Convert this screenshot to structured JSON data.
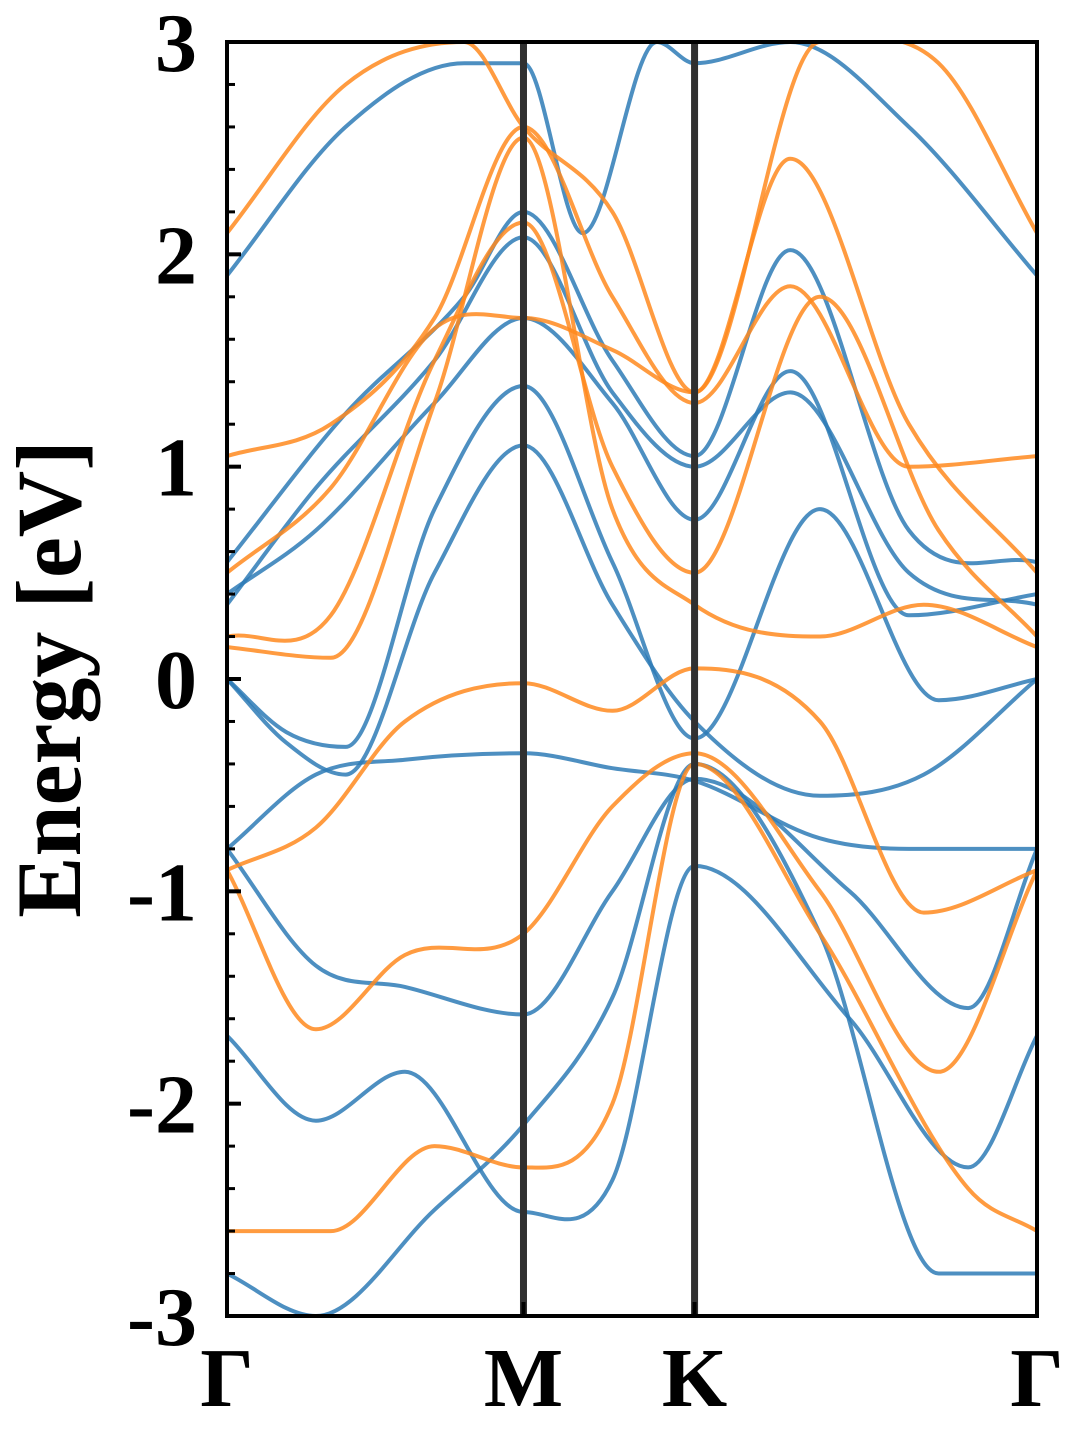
{
  "chart_data": {
    "type": "line",
    "title": "",
    "xlabel": "",
    "ylabel": "Energy [eV]",
    "ylim": [
      -3,
      3
    ],
    "yticks": [
      -3,
      -2,
      -1,
      0,
      1,
      2,
      3
    ],
    "ytick_labels": [
      "-3",
      "-2",
      "-1",
      "0",
      "1",
      "2",
      "3"
    ],
    "kpath": {
      "labels": [
        "Γ",
        "M",
        "K",
        "Γ"
      ],
      "positions": [
        0,
        1,
        1.577,
        2.732
      ]
    },
    "grid": false,
    "legend": "none",
    "colors": {
      "spin_up": "#2e7bb6",
      "spin_down": "#ff8a1f",
      "kpoint_line": "#303030"
    },
    "series": [
      {
        "color": "spin_up",
        "x": [
          0,
          0.3,
          0.6,
          1,
          1.3,
          1.577,
          2.1,
          2.5,
          2.732
        ],
        "y": [
          -1.68,
          -2.08,
          -1.85,
          -2.51,
          -2.36,
          -0.88,
          -1.6,
          -2.3,
          -1.68
        ]
      },
      {
        "color": "spin_up",
        "x": [
          0,
          0.3,
          0.6,
          1,
          1.3,
          1.577,
          2.1,
          2.5,
          2.732
        ],
        "y": [
          -0.8,
          -1.35,
          -1.45,
          -1.58,
          -1.0,
          -0.47,
          -1.0,
          -1.55,
          -0.8
        ]
      },
      {
        "color": "spin_up",
        "x": [
          0,
          0.3,
          0.6,
          1,
          1.3,
          1.577,
          2.0,
          2.3,
          2.732
        ],
        "y": [
          -0.8,
          -0.45,
          -0.38,
          -0.35,
          -0.42,
          -0.48,
          -0.75,
          -0.8,
          -0.8
        ]
      },
      {
        "color": "spin_up",
        "x": [
          0,
          0.2,
          0.4,
          0.7,
          1,
          1.3,
          1.577,
          2.0,
          2.35,
          2.732
        ],
        "y": [
          0.0,
          -0.3,
          -0.45,
          0.5,
          1.1,
          0.35,
          -0.2,
          -0.55,
          -0.45,
          0.0
        ]
      },
      {
        "color": "spin_up",
        "x": [
          0,
          0.2,
          0.4,
          0.7,
          1,
          1.3,
          1.577,
          2.0,
          2.4,
          2.732
        ],
        "y": [
          0.0,
          -0.25,
          -0.32,
          0.8,
          1.38,
          0.55,
          -0.28,
          0.8,
          -0.1,
          0.0
        ]
      },
      {
        "color": "spin_up",
        "x": [
          0,
          0.3,
          0.7,
          1,
          1.3,
          1.577,
          1.9,
          2.3,
          2.732
        ],
        "y": [
          0.4,
          0.7,
          1.3,
          1.7,
          1.3,
          0.75,
          1.45,
          0.3,
          0.4
        ]
      },
      {
        "color": "spin_up",
        "x": [
          0,
          0.3,
          0.7,
          1,
          1.3,
          1.577,
          1.9,
          2.3,
          2.732
        ],
        "y": [
          0.35,
          0.9,
          1.5,
          2.08,
          1.35,
          1.0,
          1.35,
          0.5,
          0.35
        ]
      },
      {
        "color": "spin_up",
        "x": [
          0,
          0.4,
          0.8,
          1,
          1.3,
          1.577,
          1.9,
          2.3,
          2.732
        ],
        "y": [
          0.55,
          1.25,
          1.8,
          2.2,
          1.5,
          1.05,
          2.02,
          0.7,
          0.55
        ]
      },
      {
        "color": "spin_up",
        "x": [
          0,
          0.4,
          0.8,
          1,
          1.2,
          1.45,
          1.577,
          1.9,
          2.3,
          2.732
        ],
        "y": [
          1.9,
          2.6,
          2.9,
          2.9,
          2.1,
          3.0,
          2.9,
          3.0,
          2.6,
          1.9
        ]
      },
      {
        "color": "spin_up",
        "x": [
          0,
          0.3,
          0.7,
          1,
          1.3,
          1.577,
          2.0,
          2.4,
          2.732
        ],
        "y": [
          -2.8,
          -3.0,
          -2.5,
          -2.1,
          -1.5,
          -0.4,
          -1.2,
          -2.8,
          -2.8
        ]
      },
      {
        "color": "spin_down",
        "x": [
          0,
          0.35,
          0.7,
          1,
          1.3,
          1.577,
          2.0,
          2.5,
          2.732
        ],
        "y": [
          -2.6,
          -2.6,
          -2.2,
          -2.3,
          -2.0,
          -0.4,
          -1.2,
          -2.4,
          -2.6
        ]
      },
      {
        "color": "spin_down",
        "x": [
          0,
          0.3,
          0.6,
          1,
          1.3,
          1.577,
          2.0,
          2.4,
          2.732
        ],
        "y": [
          -0.9,
          -1.65,
          -1.3,
          -1.2,
          -0.6,
          -0.35,
          -1.0,
          -1.85,
          -0.9
        ]
      },
      {
        "color": "spin_down",
        "x": [
          0,
          0.3,
          0.6,
          1,
          1.3,
          1.577,
          2.0,
          2.35,
          2.732
        ],
        "y": [
          -0.9,
          -0.7,
          -0.2,
          -0.02,
          -0.15,
          0.05,
          -0.2,
          -1.1,
          -0.9
        ]
      },
      {
        "color": "spin_down",
        "x": [
          0,
          0.35,
          0.7,
          1,
          1.3,
          1.577,
          2.0,
          2.35,
          2.732
        ],
        "y": [
          0.15,
          0.1,
          1.3,
          2.55,
          0.8,
          0.35,
          0.2,
          0.35,
          0.15
        ]
      },
      {
        "color": "spin_down",
        "x": [
          0,
          0.35,
          0.7,
          1,
          1.3,
          1.577,
          2.0,
          2.4,
          2.732
        ],
        "y": [
          0.2,
          0.3,
          1.5,
          2.15,
          1.0,
          0.5,
          1.8,
          0.7,
          0.2
        ]
      },
      {
        "color": "spin_down",
        "x": [
          0,
          0.35,
          0.7,
          1,
          1.3,
          1.577,
          1.9,
          2.3,
          2.732
        ],
        "y": [
          0.5,
          0.9,
          1.65,
          1.7,
          1.55,
          1.35,
          2.45,
          1.2,
          0.5
        ]
      },
      {
        "color": "spin_down",
        "x": [
          0,
          0.35,
          0.7,
          1,
          1.3,
          1.577,
          1.9,
          2.3,
          2.732
        ],
        "y": [
          1.05,
          1.2,
          1.7,
          2.6,
          1.8,
          1.3,
          1.85,
          1.0,
          1.05
        ]
      },
      {
        "color": "spin_down",
        "x": [
          0,
          0.4,
          0.8,
          1,
          1.3,
          1.577,
          2.0,
          2.4,
          2.732
        ],
        "y": [
          2.1,
          2.8,
          3.0,
          2.6,
          2.2,
          1.35,
          3.0,
          2.9,
          2.1
        ]
      }
    ]
  }
}
